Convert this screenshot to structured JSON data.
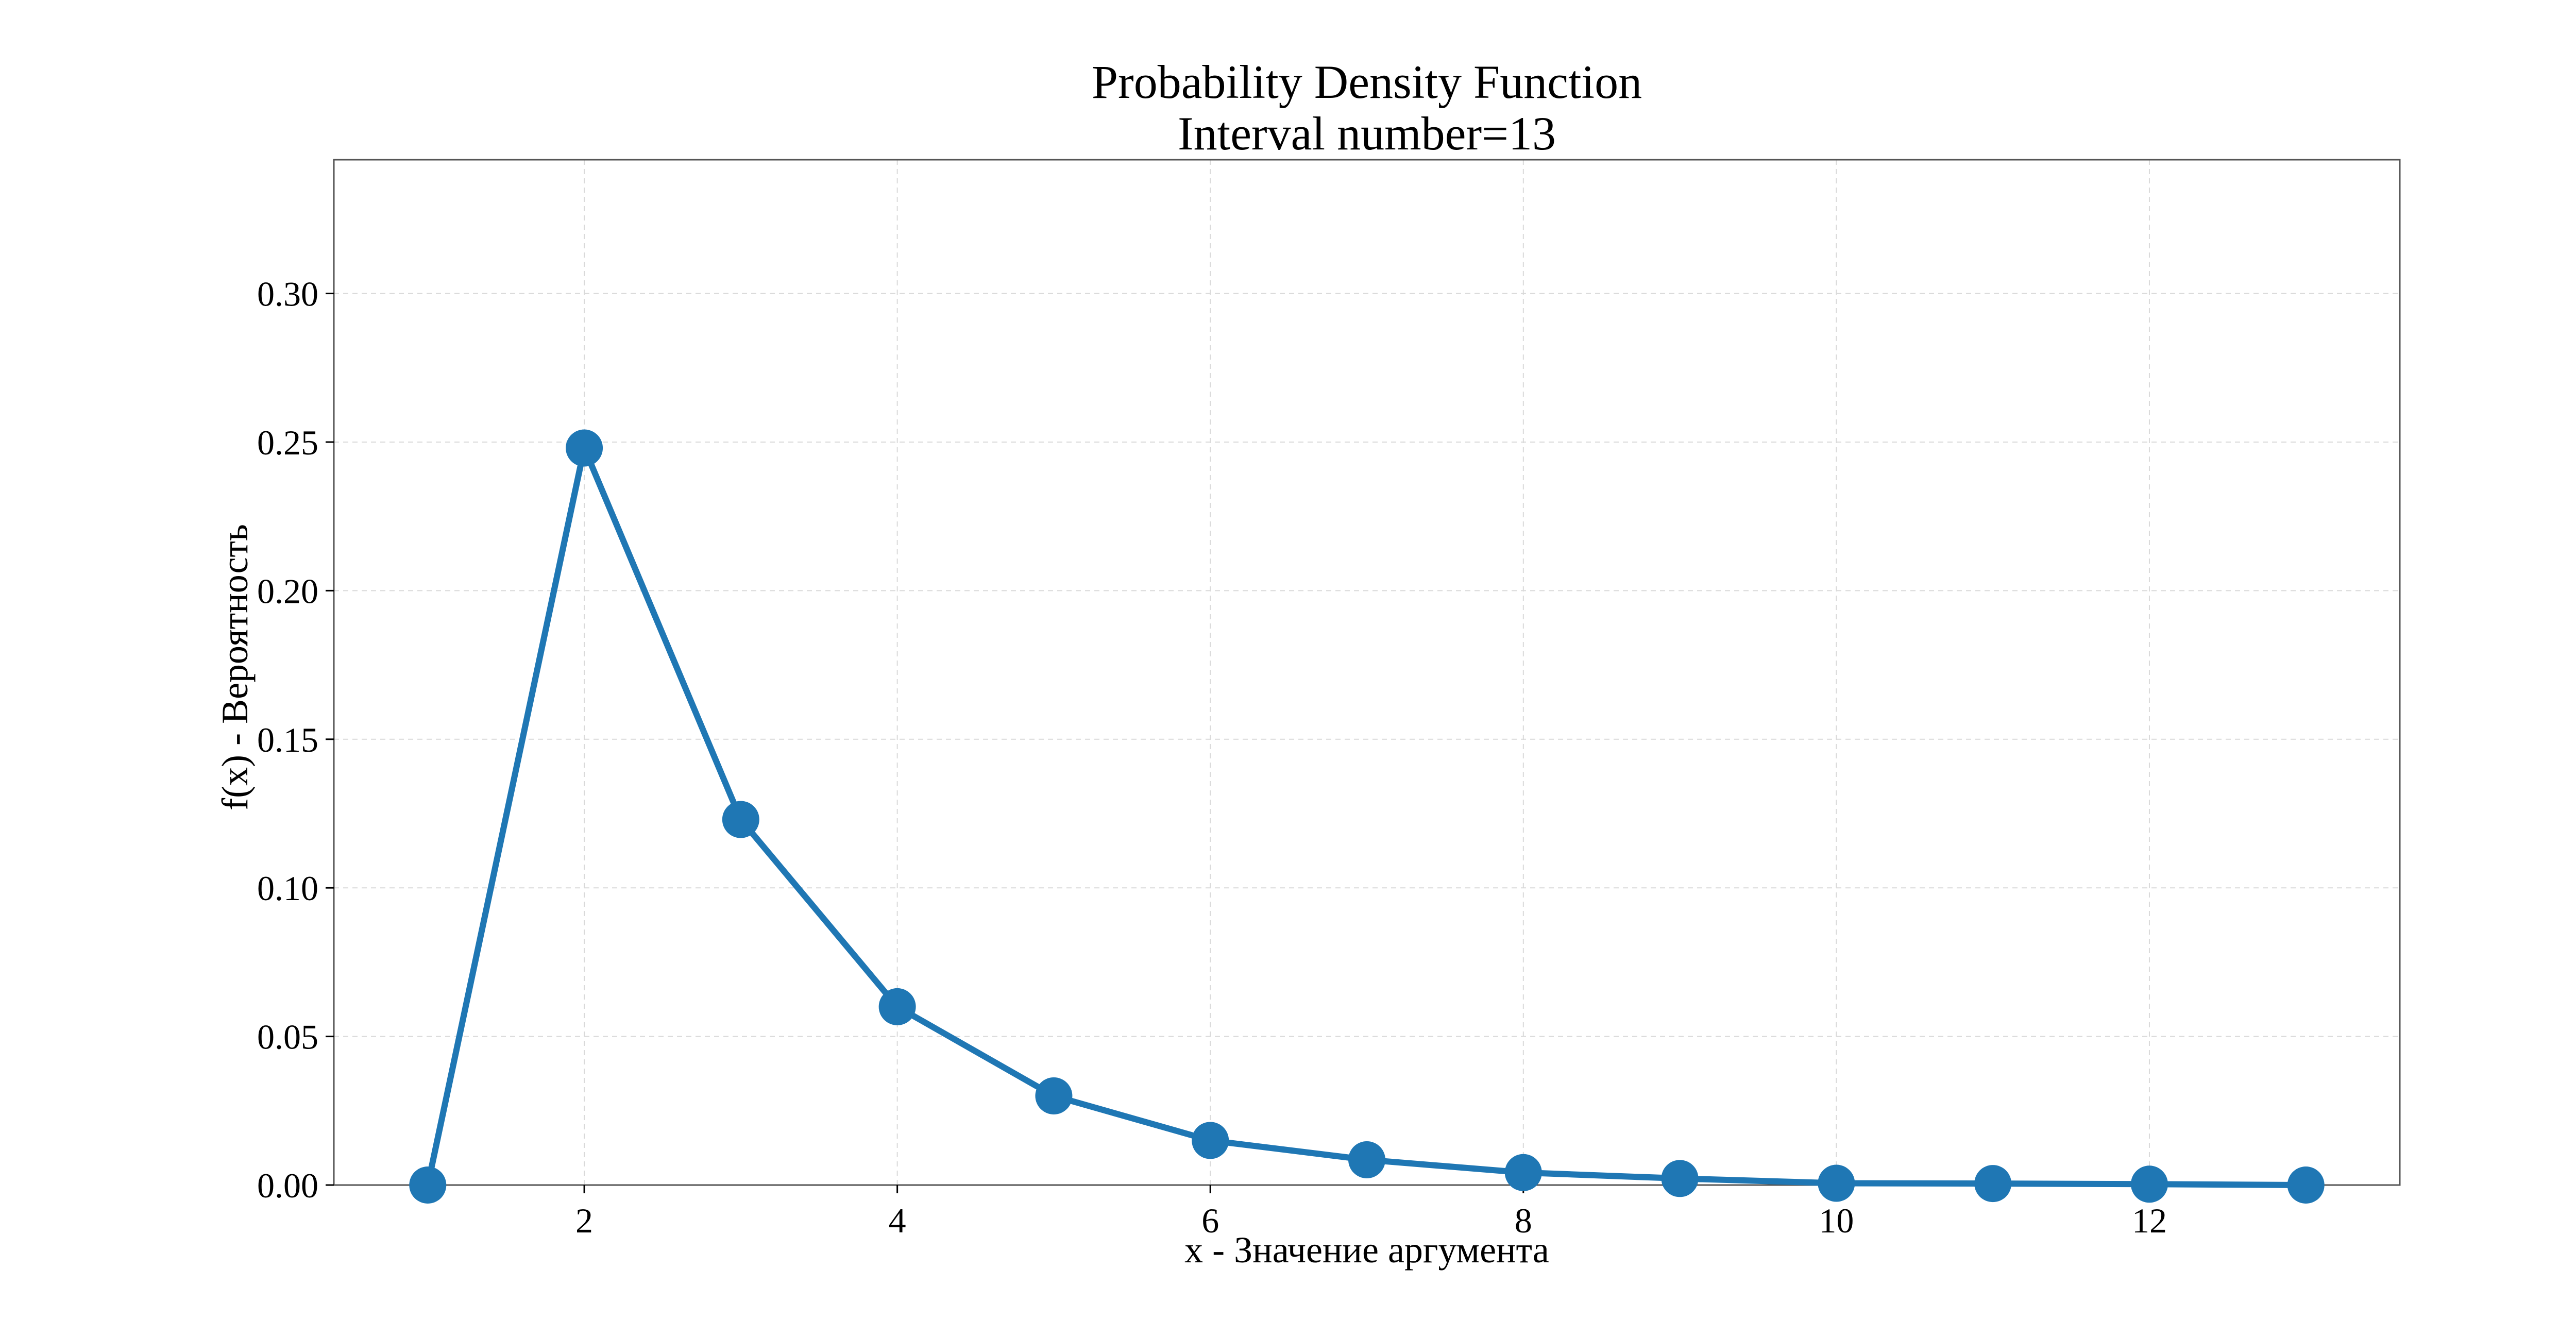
{
  "chart_data": {
    "type": "line",
    "title": "Probability Density Function",
    "subtitle": "Interval number=13",
    "xlabel": "x - Значение аргумента",
    "ylabel": "f(x) - Вероятность",
    "x": [
      1,
      2,
      3,
      4,
      5,
      6,
      7,
      8,
      9,
      10,
      11,
      12,
      13
    ],
    "series": [
      {
        "values": [
          0.0,
          0.248,
          0.123,
          0.06,
          0.03,
          0.015,
          0.0085,
          0.0042,
          0.0022,
          0.0006,
          0.0005,
          0.0003,
          0.0
        ]
      }
    ],
    "xlim": [
      0.4,
      13.6
    ],
    "ylim": [
      0,
      0.345
    ],
    "xticks": [
      2,
      4,
      6,
      8,
      10,
      12
    ],
    "xtick_labels": [
      "2",
      "4",
      "6",
      "8",
      "10",
      "12"
    ],
    "yticks": [
      0.0,
      0.05,
      0.1,
      0.15,
      0.2,
      0.25,
      0.3
    ],
    "ytick_labels": [
      "0.00",
      "0.05",
      "0.10",
      "0.15",
      "0.20",
      "0.25",
      "0.30"
    ],
    "grid": true,
    "legend": "none",
    "colors": {
      "line": "#1f77b4",
      "marker": "#1f77b4",
      "grid": "#d9d9d9",
      "frame": "#555555"
    }
  }
}
